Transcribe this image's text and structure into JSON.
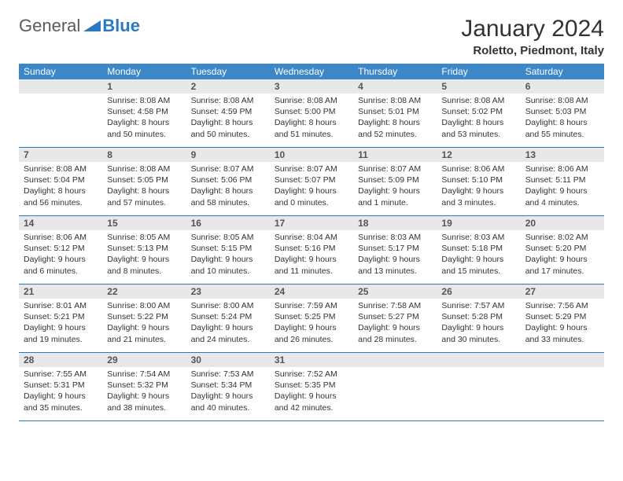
{
  "logo": {
    "text1": "General",
    "text2": "Blue"
  },
  "title": "January 2024",
  "location": "Roletto, Piedmont, Italy",
  "colors": {
    "header_bg": "#3b87c8",
    "header_text": "#ffffff",
    "rule": "#2b78c4",
    "daynum_bg": "#e8e8e8",
    "daynum_text": "#555555",
    "body_text": "#333333",
    "page_bg": "#ffffff"
  },
  "typography": {
    "month_title_fontsize": 30,
    "location_fontsize": 15,
    "weekday_fontsize": 12,
    "daynum_fontsize": 12,
    "body_fontsize": 10.5
  },
  "weekdays": [
    "Sunday",
    "Monday",
    "Tuesday",
    "Wednesday",
    "Thursday",
    "Friday",
    "Saturday"
  ],
  "weeks": [
    [
      {
        "n": "",
        "sunrise": "",
        "sunset": "",
        "daylight": ""
      },
      {
        "n": "1",
        "sunrise": "Sunrise: 8:08 AM",
        "sunset": "Sunset: 4:58 PM",
        "daylight": "Daylight: 8 hours and 50 minutes."
      },
      {
        "n": "2",
        "sunrise": "Sunrise: 8:08 AM",
        "sunset": "Sunset: 4:59 PM",
        "daylight": "Daylight: 8 hours and 50 minutes."
      },
      {
        "n": "3",
        "sunrise": "Sunrise: 8:08 AM",
        "sunset": "Sunset: 5:00 PM",
        "daylight": "Daylight: 8 hours and 51 minutes."
      },
      {
        "n": "4",
        "sunrise": "Sunrise: 8:08 AM",
        "sunset": "Sunset: 5:01 PM",
        "daylight": "Daylight: 8 hours and 52 minutes."
      },
      {
        "n": "5",
        "sunrise": "Sunrise: 8:08 AM",
        "sunset": "Sunset: 5:02 PM",
        "daylight": "Daylight: 8 hours and 53 minutes."
      },
      {
        "n": "6",
        "sunrise": "Sunrise: 8:08 AM",
        "sunset": "Sunset: 5:03 PM",
        "daylight": "Daylight: 8 hours and 55 minutes."
      }
    ],
    [
      {
        "n": "7",
        "sunrise": "Sunrise: 8:08 AM",
        "sunset": "Sunset: 5:04 PM",
        "daylight": "Daylight: 8 hours and 56 minutes."
      },
      {
        "n": "8",
        "sunrise": "Sunrise: 8:08 AM",
        "sunset": "Sunset: 5:05 PM",
        "daylight": "Daylight: 8 hours and 57 minutes."
      },
      {
        "n": "9",
        "sunrise": "Sunrise: 8:07 AM",
        "sunset": "Sunset: 5:06 PM",
        "daylight": "Daylight: 8 hours and 58 minutes."
      },
      {
        "n": "10",
        "sunrise": "Sunrise: 8:07 AM",
        "sunset": "Sunset: 5:07 PM",
        "daylight": "Daylight: 9 hours and 0 minutes."
      },
      {
        "n": "11",
        "sunrise": "Sunrise: 8:07 AM",
        "sunset": "Sunset: 5:09 PM",
        "daylight": "Daylight: 9 hours and 1 minute."
      },
      {
        "n": "12",
        "sunrise": "Sunrise: 8:06 AM",
        "sunset": "Sunset: 5:10 PM",
        "daylight": "Daylight: 9 hours and 3 minutes."
      },
      {
        "n": "13",
        "sunrise": "Sunrise: 8:06 AM",
        "sunset": "Sunset: 5:11 PM",
        "daylight": "Daylight: 9 hours and 4 minutes."
      }
    ],
    [
      {
        "n": "14",
        "sunrise": "Sunrise: 8:06 AM",
        "sunset": "Sunset: 5:12 PM",
        "daylight": "Daylight: 9 hours and 6 minutes."
      },
      {
        "n": "15",
        "sunrise": "Sunrise: 8:05 AM",
        "sunset": "Sunset: 5:13 PM",
        "daylight": "Daylight: 9 hours and 8 minutes."
      },
      {
        "n": "16",
        "sunrise": "Sunrise: 8:05 AM",
        "sunset": "Sunset: 5:15 PM",
        "daylight": "Daylight: 9 hours and 10 minutes."
      },
      {
        "n": "17",
        "sunrise": "Sunrise: 8:04 AM",
        "sunset": "Sunset: 5:16 PM",
        "daylight": "Daylight: 9 hours and 11 minutes."
      },
      {
        "n": "18",
        "sunrise": "Sunrise: 8:03 AM",
        "sunset": "Sunset: 5:17 PM",
        "daylight": "Daylight: 9 hours and 13 minutes."
      },
      {
        "n": "19",
        "sunrise": "Sunrise: 8:03 AM",
        "sunset": "Sunset: 5:18 PM",
        "daylight": "Daylight: 9 hours and 15 minutes."
      },
      {
        "n": "20",
        "sunrise": "Sunrise: 8:02 AM",
        "sunset": "Sunset: 5:20 PM",
        "daylight": "Daylight: 9 hours and 17 minutes."
      }
    ],
    [
      {
        "n": "21",
        "sunrise": "Sunrise: 8:01 AM",
        "sunset": "Sunset: 5:21 PM",
        "daylight": "Daylight: 9 hours and 19 minutes."
      },
      {
        "n": "22",
        "sunrise": "Sunrise: 8:00 AM",
        "sunset": "Sunset: 5:22 PM",
        "daylight": "Daylight: 9 hours and 21 minutes."
      },
      {
        "n": "23",
        "sunrise": "Sunrise: 8:00 AM",
        "sunset": "Sunset: 5:24 PM",
        "daylight": "Daylight: 9 hours and 24 minutes."
      },
      {
        "n": "24",
        "sunrise": "Sunrise: 7:59 AM",
        "sunset": "Sunset: 5:25 PM",
        "daylight": "Daylight: 9 hours and 26 minutes."
      },
      {
        "n": "25",
        "sunrise": "Sunrise: 7:58 AM",
        "sunset": "Sunset: 5:27 PM",
        "daylight": "Daylight: 9 hours and 28 minutes."
      },
      {
        "n": "26",
        "sunrise": "Sunrise: 7:57 AM",
        "sunset": "Sunset: 5:28 PM",
        "daylight": "Daylight: 9 hours and 30 minutes."
      },
      {
        "n": "27",
        "sunrise": "Sunrise: 7:56 AM",
        "sunset": "Sunset: 5:29 PM",
        "daylight": "Daylight: 9 hours and 33 minutes."
      }
    ],
    [
      {
        "n": "28",
        "sunrise": "Sunrise: 7:55 AM",
        "sunset": "Sunset: 5:31 PM",
        "daylight": "Daylight: 9 hours and 35 minutes."
      },
      {
        "n": "29",
        "sunrise": "Sunrise: 7:54 AM",
        "sunset": "Sunset: 5:32 PM",
        "daylight": "Daylight: 9 hours and 38 minutes."
      },
      {
        "n": "30",
        "sunrise": "Sunrise: 7:53 AM",
        "sunset": "Sunset: 5:34 PM",
        "daylight": "Daylight: 9 hours and 40 minutes."
      },
      {
        "n": "31",
        "sunrise": "Sunrise: 7:52 AM",
        "sunset": "Sunset: 5:35 PM",
        "daylight": "Daylight: 9 hours and 42 minutes."
      },
      {
        "n": "",
        "sunrise": "",
        "sunset": "",
        "daylight": ""
      },
      {
        "n": "",
        "sunrise": "",
        "sunset": "",
        "daylight": ""
      },
      {
        "n": "",
        "sunrise": "",
        "sunset": "",
        "daylight": ""
      }
    ]
  ]
}
